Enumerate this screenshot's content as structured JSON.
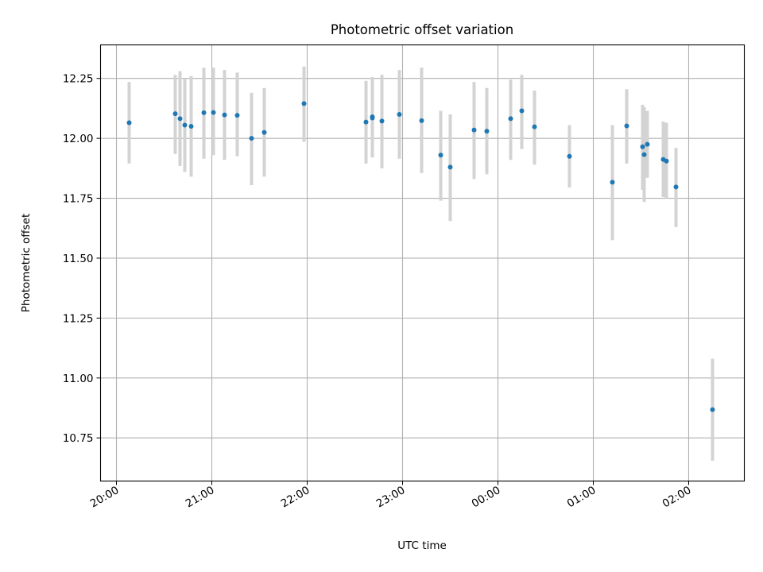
{
  "chart_data": {
    "type": "scatter",
    "title": "Photometric offset variation",
    "xlabel": "UTC time",
    "ylabel": "Photometric offset",
    "grid": true,
    "x_unit": "UTC time (HH:MM, spans midnight)",
    "xlim": [
      "19:50",
      "02:35"
    ],
    "ylim": [
      10.57,
      12.39
    ],
    "x_ticks": [
      "20:00",
      "21:00",
      "22:00",
      "23:00",
      "00:00",
      "01:00",
      "02:00"
    ],
    "y_ticks": [
      10.75,
      11.0,
      11.25,
      11.5,
      11.75,
      12.0,
      12.25
    ],
    "y_tick_labels": [
      "10.75",
      "11.00",
      "11.25",
      "11.50",
      "11.75",
      "12.00",
      "12.25"
    ],
    "colors": {
      "points": "#1f77b4",
      "error_bars": "#d3d3d3"
    },
    "points": [
      {
        "x": "20:08",
        "y": 12.065,
        "err_low": 11.895,
        "err_high": 12.235
      },
      {
        "x": "20:37",
        "y": 12.103,
        "err_low": 11.935,
        "err_high": 12.265
      },
      {
        "x": "20:40",
        "y": 12.082,
        "err_low": 11.885,
        "err_high": 12.28
      },
      {
        "x": "20:43",
        "y": 12.055,
        "err_low": 11.86,
        "err_high": 12.25
      },
      {
        "x": "20:47",
        "y": 12.05,
        "err_low": 11.84,
        "err_high": 12.26
      },
      {
        "x": "20:55",
        "y": 12.107,
        "err_low": 11.915,
        "err_high": 12.295
      },
      {
        "x": "21:01",
        "y": 12.108,
        "err_low": 11.93,
        "err_high": 12.295
      },
      {
        "x": "21:08",
        "y": 12.098,
        "err_low": 11.91,
        "err_high": 12.285
      },
      {
        "x": "21:16",
        "y": 12.096,
        "err_low": 11.925,
        "err_high": 12.275
      },
      {
        "x": "21:25",
        "y": 12.0,
        "err_low": 11.805,
        "err_high": 12.19
      },
      {
        "x": "21:33",
        "y": 12.025,
        "err_low": 11.84,
        "err_high": 12.21
      },
      {
        "x": "21:58",
        "y": 12.145,
        "err_low": 11.985,
        "err_high": 12.3
      },
      {
        "x": "22:37",
        "y": 12.068,
        "err_low": 11.895,
        "err_high": 12.24
      },
      {
        "x": "22:41",
        "y": 12.085,
        "err_low": 11.92,
        "err_high": 12.255
      },
      {
        "x": "22:41",
        "y": 12.09,
        "err_low": 11.925,
        "err_high": 12.255
      },
      {
        "x": "22:47",
        "y": 12.072,
        "err_low": 11.875,
        "err_high": 12.265
      },
      {
        "x": "22:58",
        "y": 12.1,
        "err_low": 11.915,
        "err_high": 12.285
      },
      {
        "x": "23:12",
        "y": 12.074,
        "err_low": 11.855,
        "err_high": 12.295
      },
      {
        "x": "23:24",
        "y": 11.93,
        "err_low": 11.74,
        "err_high": 12.115
      },
      {
        "x": "23:30",
        "y": 11.88,
        "err_low": 11.655,
        "err_high": 12.1
      },
      {
        "x": "23:45",
        "y": 12.035,
        "err_low": 11.83,
        "err_high": 12.235
      },
      {
        "x": "23:53",
        "y": 12.03,
        "err_low": 11.85,
        "err_high": 12.21
      },
      {
        "x": "00:08",
        "y": 12.082,
        "err_low": 11.91,
        "err_high": 12.245
      },
      {
        "x": "00:15",
        "y": 12.115,
        "err_low": 11.955,
        "err_high": 12.265
      },
      {
        "x": "00:23",
        "y": 12.048,
        "err_low": 11.89,
        "err_high": 12.2
      },
      {
        "x": "00:45",
        "y": 11.925,
        "err_low": 11.795,
        "err_high": 12.055
      },
      {
        "x": "01:12",
        "y": 11.817,
        "err_low": 11.575,
        "err_high": 12.055
      },
      {
        "x": "01:21",
        "y": 12.052,
        "err_low": 11.895,
        "err_high": 12.205
      },
      {
        "x": "01:31",
        "y": 11.965,
        "err_low": 11.785,
        "err_high": 12.14
      },
      {
        "x": "01:32",
        "y": 11.932,
        "err_low": 11.735,
        "err_high": 12.13
      },
      {
        "x": "01:34",
        "y": 11.975,
        "err_low": 11.835,
        "err_high": 12.115
      },
      {
        "x": "01:44",
        "y": 11.912,
        "err_low": 11.755,
        "err_high": 12.07
      },
      {
        "x": "01:46",
        "y": 11.905,
        "err_low": 11.75,
        "err_high": 12.065
      },
      {
        "x": "01:52",
        "y": 11.797,
        "err_low": 11.63,
        "err_high": 11.96
      },
      {
        "x": "02:15",
        "y": 10.868,
        "err_low": 10.655,
        "err_high": 11.08
      }
    ]
  }
}
